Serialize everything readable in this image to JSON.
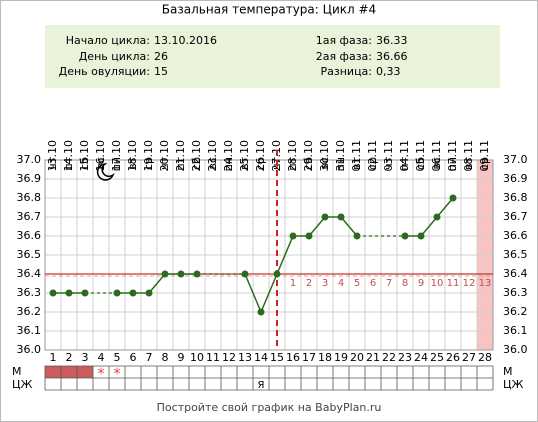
{
  "chart_data": {
    "type": "line",
    "title": "Базальная температура: Цикл #4",
    "info": {
      "cycle_start": {
        "label": "Начало цикла:",
        "value": "13.10.2016"
      },
      "cycle_day": {
        "label": "День цикла:",
        "value": 26
      },
      "ovulation_day": {
        "label": "День овуляции:",
        "value": 15
      },
      "phase1": {
        "label": "1ая фаза:",
        "value": 36.33
      },
      "phase2": {
        "label": "2ая фаза:",
        "value": 36.66
      },
      "difference": {
        "label": "Разница:",
        "value": "0,33"
      }
    },
    "categories": [
      1,
      2,
      3,
      4,
      5,
      6,
      7,
      8,
      9,
      10,
      11,
      12,
      13,
      14,
      15,
      16,
      17,
      18,
      19,
      20,
      21,
      22,
      23,
      24,
      25,
      26,
      27,
      28
    ],
    "weekdays": [
      "чт",
      "пт",
      "сб",
      "вс",
      "пн",
      "вт",
      "ср",
      "чт",
      "пт",
      "сб",
      "вс",
      "пн",
      "вт",
      "ср",
      "чт",
      "пт",
      "сб",
      "вс",
      "пн",
      "вт",
      "ср",
      "чт",
      "пт",
      "сб",
      "вс",
      "пн",
      "вт",
      "ср"
    ],
    "dates": [
      "13.10",
      "14.10",
      "15.10",
      "16.10",
      "17.10",
      "18.10",
      "19.10",
      "20.10",
      "21.10",
      "22.10",
      "23.10",
      "24.10",
      "25.10",
      "26.10",
      "27.10",
      "28.10",
      "29.10",
      "30.10",
      "31.10",
      "01.11",
      "02.11",
      "03.11",
      "04.11",
      "05.11",
      "06.11",
      "07.11",
      "08.11",
      "09.11"
    ],
    "values": [
      36.3,
      36.3,
      36.3,
      null,
      36.3,
      36.3,
      36.3,
      36.4,
      36.4,
      36.4,
      null,
      null,
      36.4,
      36.2,
      36.4,
      36.6,
      36.6,
      36.7,
      36.7,
      36.6,
      null,
      null,
      36.6,
      36.6,
      36.7,
      36.8,
      null,
      null
    ],
    "color": "#2b6a1f",
    "coverline": 36.4,
    "luteal_days": [
      1,
      2,
      3,
      4,
      5,
      6,
      7,
      8,
      9,
      10,
      11,
      12,
      13
    ],
    "ylim": [
      36,
      37
    ],
    "yticks": [
      {
        "value": 36,
        "label": "36.0"
      },
      36.1,
      36.2,
      36.3,
      36.4,
      36.5,
      36.6,
      36.7,
      36.8,
      36.9,
      {
        "value": 37,
        "label": "37.0"
      }
    ],
    "grid": true,
    "m_row": {
      "label": "М",
      "filled_days": [
        1,
        2,
        3
      ],
      "star_days": [
        4,
        5
      ],
      "star": "*"
    },
    "cm_row": {
      "label": "ЦЖ",
      "notes": [
        {
          "day": 14,
          "text": "Я"
        }
      ]
    },
    "footer": "Постройте свой график на BabyPlan.ru"
  }
}
